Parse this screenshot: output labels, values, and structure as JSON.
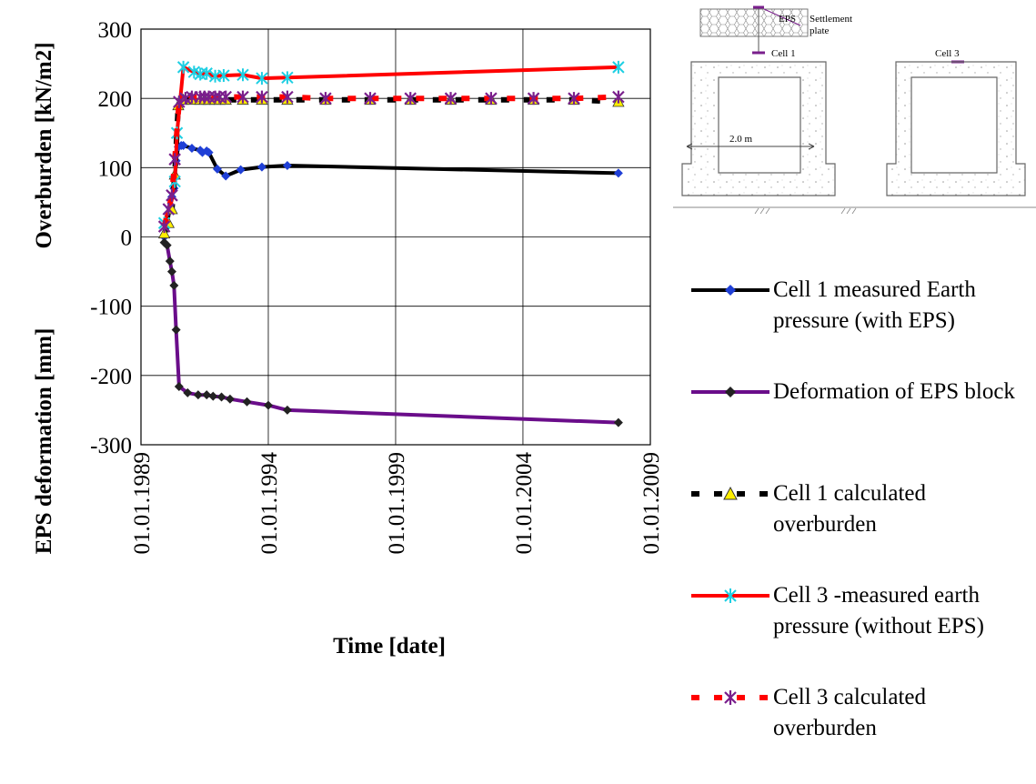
{
  "chart_data": {
    "type": "line",
    "ylabel_top": "Overburden [kN/m2]",
    "ylabel_bottom": "EPS deformation [mm]",
    "xlabel": "Time [date]",
    "ylim": [
      -300,
      300
    ],
    "yticks": [
      -300,
      -200,
      -100,
      0,
      100,
      200,
      300
    ],
    "xlim": [
      "1989-01-01",
      "2009-01-01"
    ],
    "xticks": [
      "01.01.1989",
      "01.01.1994",
      "01.01.1999",
      "01.01.2004",
      "01.01.2009"
    ],
    "grid": true,
    "legend_position": "right",
    "series": [
      {
        "name": "Cell 1 measured Earth pressure (with EPS)",
        "color": "#000000",
        "marker_color": "#1f3fd6",
        "marker": "diamond",
        "style": "solid",
        "x": [
          "1989-12-01",
          "1990-01-10",
          "1990-02-20",
          "1990-03-20",
          "1990-04-20",
          "1990-05-20",
          "1990-06-20",
          "1990-08-01",
          "1990-09-01",
          "1991-01-01",
          "1991-05-01",
          "1991-06-01",
          "1991-08-01",
          "1991-09-01",
          "1992-01-01",
          "1992-05-01",
          "1992-12-01",
          "1993-10-01",
          "1994-10-01",
          "2007-10-01"
        ],
        "y": [
          0,
          18,
          42,
          58,
          70,
          110,
          130,
          132,
          132,
          128,
          125,
          122,
          124,
          122,
          98,
          88,
          97,
          101,
          103,
          92
        ]
      },
      {
        "name": "Deformation of EPS block",
        "color": "#6a0d8a",
        "marker_color": "#222222",
        "marker": "diamond",
        "style": "solid",
        "x": [
          "1989-12-01",
          "1990-01-10",
          "1990-02-20",
          "1990-03-20",
          "1990-04-20",
          "1990-05-20",
          "1990-07-01",
          "1990-11-01",
          "1991-04-01",
          "1991-08-01",
          "1991-11-01",
          "1992-03-01",
          "1992-07-01",
          "1993-03-01",
          "1994-01-01",
          "1994-10-01",
          "2007-10-01"
        ],
        "y": [
          -8,
          -12,
          -35,
          -50,
          -70,
          -134,
          -216,
          -225,
          -228,
          -228,
          -230,
          -231,
          -234,
          -238,
          -243,
          -250,
          -268
        ]
      },
      {
        "name": "Cell 1 calculated overburden",
        "color": "#000000",
        "marker_color": "#ffee00",
        "marker": "triangle",
        "style": "dashed",
        "x": [
          "1989-12-01",
          "1990-02-01",
          "1990-03-20",
          "1990-05-01",
          "1990-06-20",
          "1990-09-01",
          "1991-01-01",
          "1991-05-01",
          "1991-07-01",
          "1991-09-01",
          "1991-12-01",
          "1992-02-01",
          "1992-05-01",
          "1993-01-01",
          "1993-10-01",
          "1994-10-01",
          "1996-04-01",
          "1998-01-01",
          "1999-08-01",
          "2001-03-01",
          "2002-10-01",
          "2004-06-01",
          "2006-01-01",
          "2007-10-01"
        ],
        "y": [
          5,
          20,
          40,
          90,
          190,
          198,
          198,
          198,
          198,
          198,
          198,
          198,
          198,
          198,
          198,
          198,
          198,
          198,
          198,
          198,
          198,
          198,
          198,
          195
        ]
      },
      {
        "name": "Cell 3 -measured earth pressure (without EPS)",
        "color": "#ff0000",
        "marker_color": "#1ecfe3",
        "marker": "x",
        "style": "solid",
        "x": [
          "1989-12-01",
          "1990-02-01",
          "1990-03-20",
          "1990-05-01",
          "1990-06-01",
          "1990-09-01",
          "1991-02-01",
          "1991-05-01",
          "1991-08-01",
          "1991-12-01",
          "1992-04-01",
          "1993-01-01",
          "1993-10-01",
          "1994-10-01",
          "2007-10-01"
        ],
        "y": [
          20,
          40,
          60,
          80,
          150,
          245,
          238,
          235,
          236,
          232,
          233,
          234,
          229,
          230,
          245
        ]
      },
      {
        "name": "Cell 3 calculated overburden",
        "color": "#ff0000",
        "marker_color": "#7a1f8c",
        "marker": "star",
        "style": "dashed",
        "x": [
          "1989-12-01",
          "1990-02-01",
          "1990-03-20",
          "1990-05-01",
          "1990-07-01",
          "1990-10-01",
          "1991-01-01",
          "1991-05-01",
          "1991-07-01",
          "1991-09-01",
          "1991-12-01",
          "1992-02-01",
          "1992-05-01",
          "1993-01-01",
          "1993-10-01",
          "1994-10-01",
          "1996-04-01",
          "1998-01-01",
          "1999-08-01",
          "2001-03-01",
          "2002-10-01",
          "2004-06-01",
          "2006-01-01",
          "2007-10-01"
        ],
        "y": [
          15,
          40,
          60,
          112,
          195,
          200,
          202,
          202,
          202,
          202,
          202,
          202,
          202,
          202,
          202,
          202,
          200,
          200,
          200,
          200,
          200,
          200,
          200,
          202
        ]
      }
    ]
  },
  "legend_labels": [
    "Cell 1 measured Earth pressure (with EPS)",
    "Deformation of EPS block",
    "Cell 1 calculated overburden",
    "Cell 3 -measured earth pressure (without EPS)",
    "Cell 3 calculated overburden"
  ],
  "schematic": {
    "eps_label": "EPS",
    "plate_label_1": "Settlement",
    "plate_label_2": "plate",
    "cell1_label": "Cell 1",
    "cell3_label": "Cell 3",
    "width_label": "2.0 m"
  }
}
